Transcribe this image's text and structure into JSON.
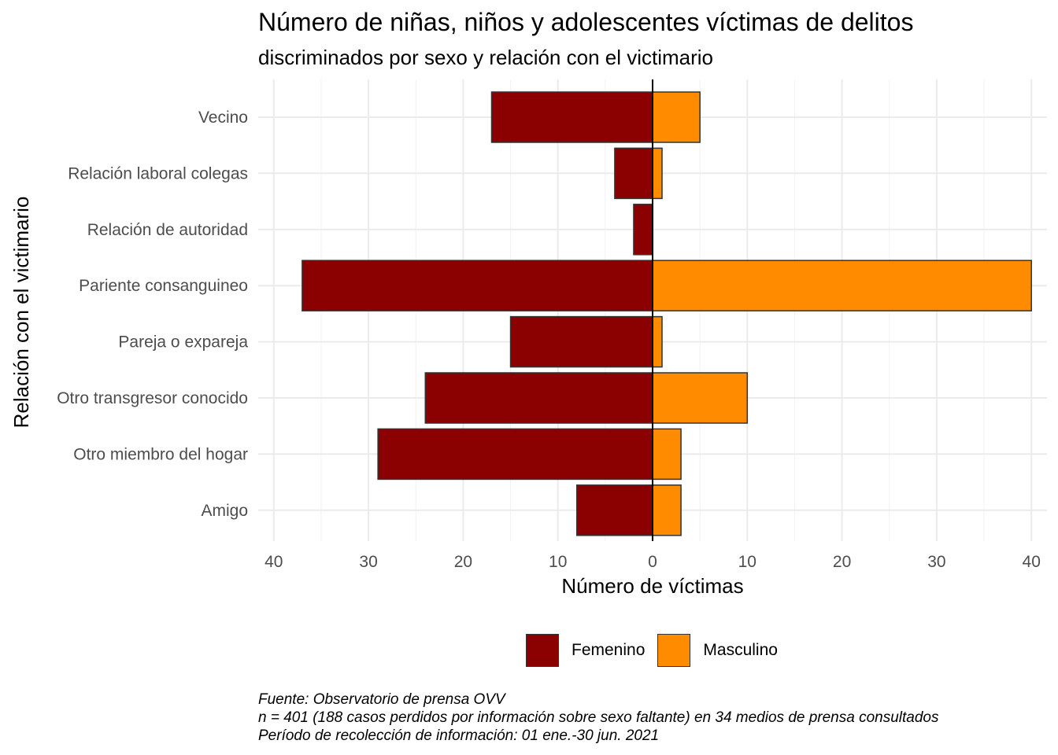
{
  "chart_data": {
    "type": "bar",
    "orientation": "horizontal",
    "layout": "diverging",
    "title": "Número de niñas, niños y adolescentes víctimas de delitos",
    "subtitle": "discriminados por sexo y relación con el victimario",
    "xlabel": "Número de víctimas",
    "ylabel": "Relación con el victimario",
    "categories": [
      "Vecino",
      "Relación laboral colegas",
      "Relación de autoridad ",
      "Pariente consanguineo",
      "Pareja o expareja",
      "Otro transgresor conocido",
      "Otro miembro del hogar",
      "Amigo"
    ],
    "series": [
      {
        "name": "Femenino",
        "color": "#8B0000",
        "values": [
          17,
          4,
          2,
          37,
          15,
          24,
          29,
          8
        ]
      },
      {
        "name": "Masculino",
        "color": "#FF8C00",
        "values": [
          5,
          1,
          0,
          40,
          1,
          10,
          3,
          3
        ]
      }
    ],
    "xlim": [
      -40,
      40
    ],
    "xticks": [
      -40,
      -30,
      -20,
      -10,
      0,
      10,
      20,
      30,
      40
    ],
    "xtick_labels": [
      "40",
      "30",
      "20",
      "10",
      "0",
      "10",
      "20",
      "30",
      "40"
    ],
    "grid": true,
    "legend_position": "bottom"
  },
  "caption": {
    "line1": "Fuente: Observatorio de prensa OVV",
    "line2": "n = 401 (188 casos perdidos por información sobre sexo faltante) en 34 medios de prensa consultados",
    "line3": "Período de recolección de información: 01 ene.-30 jun. 2021"
  }
}
